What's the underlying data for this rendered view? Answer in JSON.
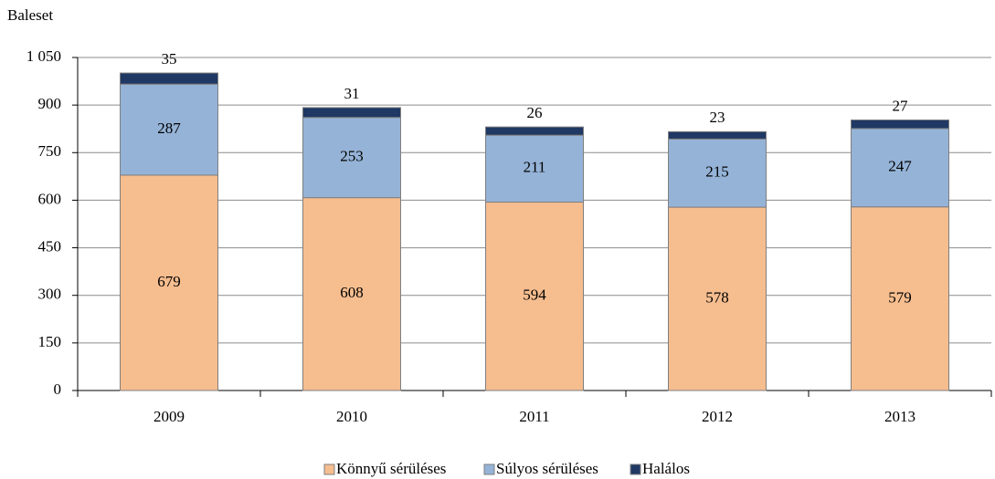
{
  "chart_data": {
    "type": "stacked_bar",
    "y_label": "Baleset",
    "categories": [
      "2009",
      "2010",
      "2011",
      "2012",
      "2013"
    ],
    "series": [
      {
        "name": "Könnyű sérüléses",
        "color": "#f6bd8f",
        "values": [
          679,
          608,
          594,
          578,
          579
        ]
      },
      {
        "name": "Súlyos sérüléses",
        "color": "#95b3d7",
        "values": [
          287,
          253,
          211,
          215,
          247
        ]
      },
      {
        "name": "Halálos",
        "color": "#1f3864",
        "values": [
          35,
          31,
          26,
          23,
          27
        ]
      }
    ],
    "ylim": [
      0,
      1050
    ],
    "yticks": [
      0,
      150,
      300,
      450,
      600,
      750,
      900,
      {
        "value": 1050,
        "label": "1 050"
      }
    ],
    "grid": true,
    "legend": "bottom"
  }
}
